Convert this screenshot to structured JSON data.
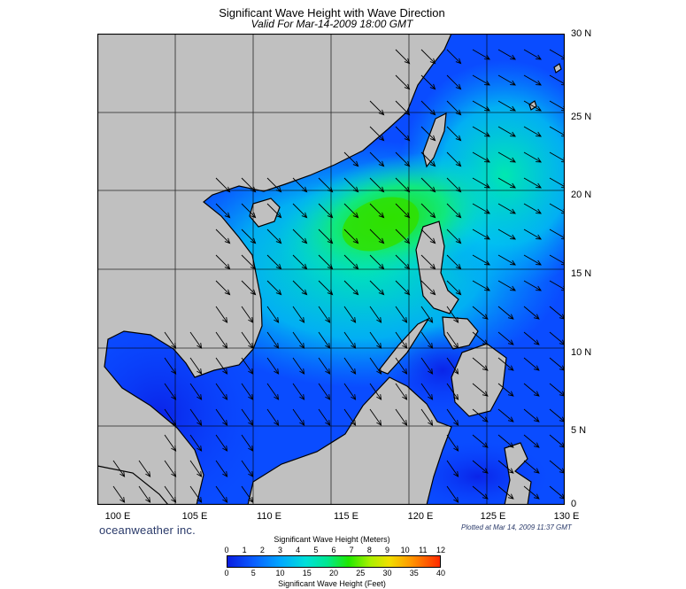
{
  "header": {
    "title": "Significant Wave Height with Wave Direction",
    "subtitle": "Valid For Mar-14-2009 18:00 GMT"
  },
  "map": {
    "lon_labels": [
      "100 E",
      "105 E",
      "110 E",
      "115 E",
      "120 E",
      "125 E",
      "130 E"
    ],
    "lat_labels": [
      "30 N",
      "25 N",
      "20 N",
      "15 N",
      "10 N",
      "5 N",
      "0"
    ],
    "land_color": "#c0c0c0",
    "border_color": "#000000",
    "grid_color": "#000000",
    "arrow_color": "#000000"
  },
  "footer": {
    "brand": "oceanweather inc.",
    "plotted": "Plotted at Mar 14, 2009 11:37 GMT"
  },
  "legend": {
    "meters_title": "Significant Wave Height (Meters)",
    "feet_title": "Significant Wave Height (Feet)",
    "meters_ticks": [
      "0",
      "1",
      "2",
      "3",
      "4",
      "5",
      "6",
      "7",
      "8",
      "9",
      "10",
      "11",
      "12"
    ],
    "feet_ticks": [
      "0",
      "5",
      "10",
      "15",
      "20",
      "25",
      "30",
      "35",
      "40"
    ],
    "colors": [
      "#0a1de0",
      "#0a5cff",
      "#00a8ff",
      "#00e0d8",
      "#00e890",
      "#20e800",
      "#a8f000",
      "#f0e000",
      "#ff9a00",
      "#ff2a00"
    ]
  }
}
